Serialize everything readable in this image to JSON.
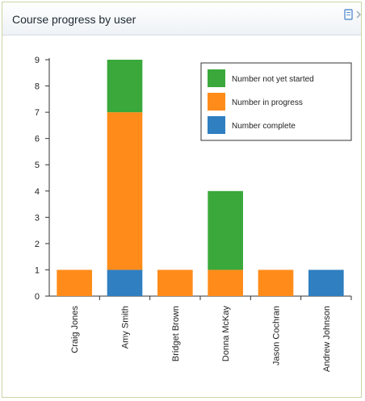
{
  "panel": {
    "title": "Course progress by user"
  },
  "chart_data": {
    "type": "bar",
    "stacked": true,
    "title": "",
    "xlabel": "",
    "ylabel": "",
    "ylim": [
      0,
      9
    ],
    "yticks": [
      0,
      1,
      2,
      3,
      4,
      5,
      6,
      7,
      8,
      9
    ],
    "grid": false,
    "legend_position": "top-right",
    "categories": [
      "Craig Jones",
      "Amy Smith",
      "Bridget Brown",
      "Donna McKay",
      "Jason Cochran",
      "Andrew Johnson"
    ],
    "series": [
      {
        "name": "Number complete",
        "color": "#2f7fc1",
        "values": [
          0,
          1,
          0,
          0,
          0,
          1
        ]
      },
      {
        "name": "Number in progress",
        "color": "#ff8c1a",
        "values": [
          1,
          6,
          1,
          1,
          1,
          0
        ]
      },
      {
        "name": "Number not yet started",
        "color": "#3aa83a",
        "values": [
          0,
          2,
          0,
          3,
          0,
          0
        ]
      }
    ],
    "legend_order": [
      "Number not yet started",
      "Number in progress",
      "Number complete"
    ]
  }
}
